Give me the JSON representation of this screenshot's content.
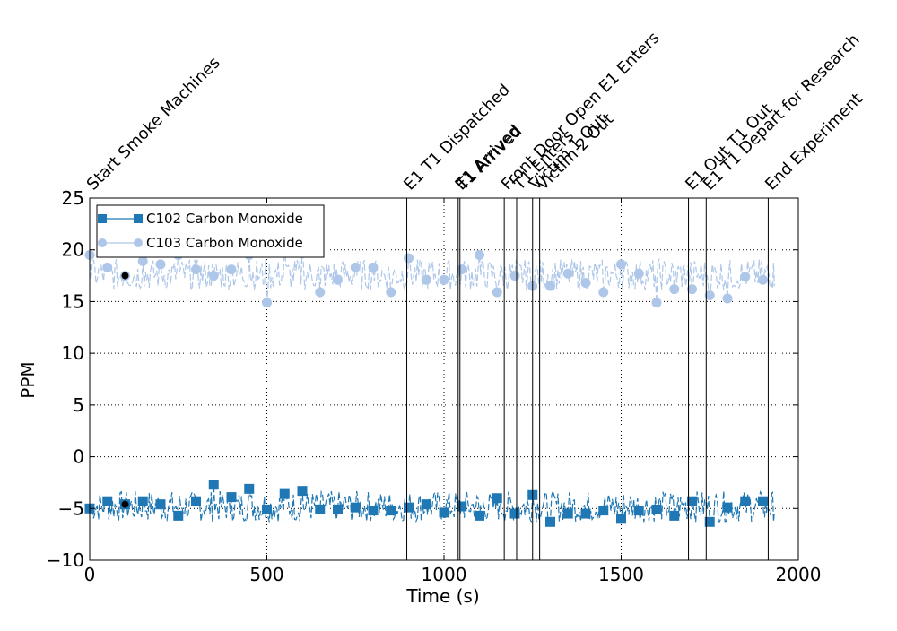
{
  "chart_data": {
    "type": "line",
    "xlabel": "Time (s)",
    "ylabel": "PPM",
    "xlim": [
      0,
      2000
    ],
    "ylim": [
      -10,
      25
    ],
    "x_ticks": [
      0,
      500,
      1000,
      1500,
      2000
    ],
    "y_ticks": [
      -10,
      -5,
      0,
      5,
      10,
      15,
      20,
      25
    ],
    "grid": true,
    "legend_position": "top-left",
    "series": [
      {
        "name": "C102 Carbon Monoxide",
        "color": "#1f77b4",
        "line_style": "dashed",
        "marker": "square",
        "marker_x": [
          0,
          50,
          100,
          150,
          200,
          250,
          300,
          350,
          400,
          450,
          500,
          550,
          600,
          650,
          700,
          750,
          800,
          850,
          900,
          950,
          1000,
          1050,
          1100,
          1150,
          1200,
          1250,
          1300,
          1350,
          1400,
          1450,
          1500,
          1550,
          1600,
          1650,
          1700,
          1750,
          1800,
          1850,
          1900
        ],
        "marker_y": [
          -5.0,
          -4.3,
          -4.6,
          -4.3,
          -4.6,
          -5.7,
          -4.3,
          -2.7,
          -3.9,
          -3.1,
          -5.1,
          -3.6,
          -3.3,
          -5.1,
          -5.1,
          -4.9,
          -5.2,
          -5.2,
          -4.9,
          -4.6,
          -5.4,
          -4.8,
          -5.7,
          -4.0,
          -5.5,
          -3.7,
          -6.3,
          -5.5,
          -5.5,
          -5.2,
          -6.0,
          -5.2,
          -5.1,
          -5.7,
          -4.3,
          -6.3,
          -4.9,
          -4.3,
          -4.3
        ],
        "baseline": -4.8
      },
      {
        "name": "C103 Carbon Monoxide",
        "color": "#aec7e8",
        "line_style": "dashed",
        "marker": "circle",
        "marker_x": [
          0,
          50,
          100,
          150,
          200,
          250,
          300,
          350,
          400,
          450,
          500,
          550,
          600,
          650,
          700,
          750,
          800,
          850,
          900,
          950,
          1000,
          1050,
          1100,
          1150,
          1200,
          1250,
          1300,
          1350,
          1400,
          1450,
          1500,
          1550,
          1600,
          1650,
          1700,
          1750,
          1800,
          1850,
          1900
        ],
        "marker_y": [
          19.5,
          18.3,
          17.5,
          18.9,
          18.6,
          19.5,
          18.1,
          17.5,
          18.1,
          19.5,
          14.9,
          20.5,
          20.5,
          15.9,
          17.1,
          18.3,
          18.3,
          15.9,
          19.2,
          17.1,
          17.1,
          18.1,
          19.5,
          15.9,
          17.5,
          16.5,
          16.5,
          17.7,
          16.8,
          15.9,
          18.6,
          17.7,
          14.9,
          16.2,
          16.2,
          15.6,
          15.3,
          17.4,
          17.1
        ],
        "baseline": 17.6
      }
    ],
    "annotation_points": [
      {
        "x": 100,
        "y": 17.5
      },
      {
        "x": 100,
        "y": -4.6
      }
    ],
    "events": [
      {
        "x": 0,
        "label": "Start Smoke Machines"
      },
      {
        "x": 895,
        "label": "E1 T1 Dispatched"
      },
      {
        "x": 1040,
        "label": "E1 Arrived"
      },
      {
        "x": 1045,
        "label": "T1 Arrived"
      },
      {
        "x": 1170,
        "label": "Front Door Open E1 Enters"
      },
      {
        "x": 1205,
        "label": "T1 Enters"
      },
      {
        "x": 1250,
        "label": "Victim 1 Out"
      },
      {
        "x": 1270,
        "label": "Victim 2 Out"
      },
      {
        "x": 1690,
        "label": "E1 Out T1 Out"
      },
      {
        "x": 1740,
        "label": "E1 T1 Depart for Research"
      },
      {
        "x": 1915,
        "label": "End Experiment"
      }
    ]
  }
}
